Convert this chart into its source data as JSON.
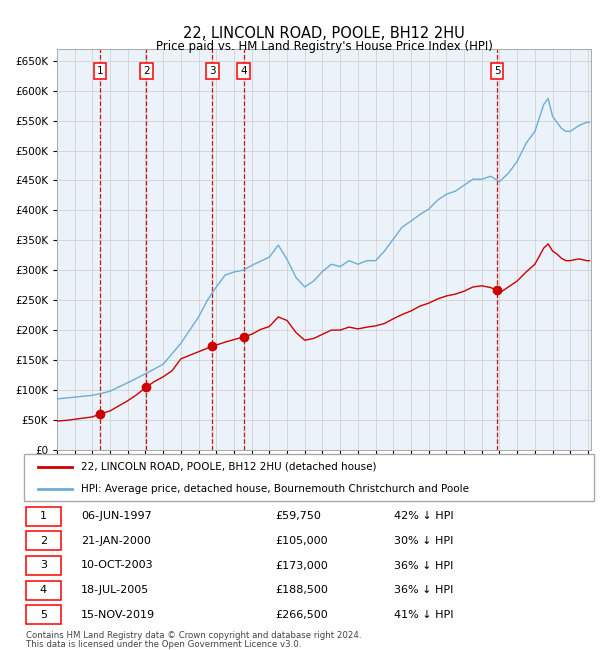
{
  "title": "22, LINCOLN ROAD, POOLE, BH12 2HU",
  "subtitle": "Price paid vs. HM Land Registry's House Price Index (HPI)",
  "legend_line1": "22, LINCOLN ROAD, POOLE, BH12 2HU (detached house)",
  "legend_line2": "HPI: Average price, detached house, Bournemouth Christchurch and Poole",
  "footer1": "Contains HM Land Registry data © Crown copyright and database right 2024.",
  "footer2": "This data is licensed under the Open Government Licence v3.0.",
  "sales": [
    {
      "num": 1,
      "date": "06-JUN-1997",
      "date_x": 1997.43,
      "price": 59750,
      "label": "42% ↓ HPI"
    },
    {
      "num": 2,
      "date": "21-JAN-2000",
      "date_x": 2000.05,
      "price": 105000,
      "label": "30% ↓ HPI"
    },
    {
      "num": 3,
      "date": "10-OCT-2003",
      "date_x": 2003.78,
      "price": 173000,
      "label": "36% ↓ HPI"
    },
    {
      "num": 4,
      "date": "18-JUL-2005",
      "date_x": 2005.54,
      "price": 188500,
      "label": "36% ↓ HPI"
    },
    {
      "num": 5,
      "date": "15-NOV-2019",
      "date_x": 2019.87,
      "price": 266500,
      "label": "41% ↓ HPI"
    }
  ],
  "hpi_anchors": [
    [
      1995.0,
      85000
    ],
    [
      1996.0,
      88000
    ],
    [
      1997.0,
      91000
    ],
    [
      1997.5,
      94000
    ],
    [
      1998.0,
      98000
    ],
    [
      1999.0,
      112000
    ],
    [
      2000.0,
      127000
    ],
    [
      2001.0,
      143000
    ],
    [
      2002.0,
      178000
    ],
    [
      2003.0,
      222000
    ],
    [
      2003.5,
      250000
    ],
    [
      2004.0,
      272000
    ],
    [
      2004.5,
      292000
    ],
    [
      2005.0,
      297000
    ],
    [
      2005.5,
      300000
    ],
    [
      2006.0,
      308000
    ],
    [
      2007.0,
      322000
    ],
    [
      2007.5,
      342000
    ],
    [
      2008.0,
      318000
    ],
    [
      2008.5,
      288000
    ],
    [
      2009.0,
      272000
    ],
    [
      2009.5,
      282000
    ],
    [
      2010.0,
      298000
    ],
    [
      2010.5,
      310000
    ],
    [
      2011.0,
      306000
    ],
    [
      2011.5,
      316000
    ],
    [
      2012.0,
      310000
    ],
    [
      2012.5,
      316000
    ],
    [
      2013.0,
      316000
    ],
    [
      2013.5,
      332000
    ],
    [
      2014.0,
      352000
    ],
    [
      2014.5,
      372000
    ],
    [
      2015.0,
      382000
    ],
    [
      2015.5,
      393000
    ],
    [
      2016.0,
      402000
    ],
    [
      2016.5,
      417000
    ],
    [
      2017.0,
      427000
    ],
    [
      2017.5,
      432000
    ],
    [
      2018.0,
      442000
    ],
    [
      2018.5,
      452000
    ],
    [
      2019.0,
      452000
    ],
    [
      2019.5,
      457000
    ],
    [
      2020.0,
      448000
    ],
    [
      2020.5,
      462000
    ],
    [
      2021.0,
      482000
    ],
    [
      2021.5,
      512000
    ],
    [
      2022.0,
      532000
    ],
    [
      2022.5,
      577000
    ],
    [
      2022.75,
      587000
    ],
    [
      2023.0,
      557000
    ],
    [
      2023.25,
      547000
    ],
    [
      2023.5,
      537000
    ],
    [
      2023.75,
      532000
    ],
    [
      2024.0,
      532000
    ],
    [
      2024.5,
      542000
    ],
    [
      2024.92,
      547000
    ]
  ],
  "price_anchors": [
    [
      1995.0,
      48000
    ],
    [
      1995.5,
      49000
    ],
    [
      1996.0,
      51000
    ],
    [
      1997.0,
      55000
    ],
    [
      1997.43,
      59750
    ],
    [
      1998.0,
      65000
    ],
    [
      1999.0,
      82000
    ],
    [
      1999.5,
      92000
    ],
    [
      2000.05,
      105000
    ],
    [
      2000.5,
      114000
    ],
    [
      2001.0,
      122000
    ],
    [
      2001.5,
      132000
    ],
    [
      2002.0,
      152000
    ],
    [
      2002.5,
      158000
    ],
    [
      2003.0,
      164000
    ],
    [
      2003.78,
      173000
    ],
    [
      2004.0,
      175000
    ],
    [
      2004.5,
      180000
    ],
    [
      2005.0,
      184000
    ],
    [
      2005.54,
      188500
    ],
    [
      2006.0,
      193000
    ],
    [
      2006.5,
      201000
    ],
    [
      2007.0,
      206000
    ],
    [
      2007.5,
      222000
    ],
    [
      2008.0,
      216000
    ],
    [
      2008.5,
      196000
    ],
    [
      2009.0,
      183000
    ],
    [
      2009.5,
      186000
    ],
    [
      2010.0,
      193000
    ],
    [
      2010.5,
      200000
    ],
    [
      2011.0,
      200000
    ],
    [
      2011.5,
      205000
    ],
    [
      2012.0,
      202000
    ],
    [
      2012.5,
      205000
    ],
    [
      2013.0,
      207000
    ],
    [
      2013.5,
      211000
    ],
    [
      2014.0,
      219000
    ],
    [
      2014.5,
      226000
    ],
    [
      2015.0,
      232000
    ],
    [
      2015.5,
      240000
    ],
    [
      2016.0,
      245000
    ],
    [
      2016.5,
      252000
    ],
    [
      2017.0,
      257000
    ],
    [
      2017.5,
      260000
    ],
    [
      2018.0,
      265000
    ],
    [
      2018.5,
      272000
    ],
    [
      2019.0,
      274000
    ],
    [
      2019.5,
      271000
    ],
    [
      2019.87,
      266500
    ],
    [
      2020.0,
      262000
    ],
    [
      2020.5,
      272000
    ],
    [
      2021.0,
      282000
    ],
    [
      2021.5,
      297000
    ],
    [
      2022.0,
      310000
    ],
    [
      2022.5,
      337000
    ],
    [
      2022.75,
      344000
    ],
    [
      2023.0,
      332000
    ],
    [
      2023.25,
      327000
    ],
    [
      2023.5,
      320000
    ],
    [
      2023.75,
      316000
    ],
    [
      2024.0,
      316000
    ],
    [
      2024.5,
      319000
    ],
    [
      2024.92,
      316000
    ]
  ],
  "ylim": [
    0,
    670000
  ],
  "yticks": [
    0,
    50000,
    100000,
    150000,
    200000,
    250000,
    300000,
    350000,
    400000,
    450000,
    500000,
    550000,
    600000,
    650000
  ],
  "xlim": [
    1995.0,
    2025.17
  ],
  "hpi_color": "#6baed6",
  "price_color": "#cc0000",
  "grid_color": "#cccccc",
  "bg_color": "#dce9f5",
  "vline_color": "#cc0000"
}
